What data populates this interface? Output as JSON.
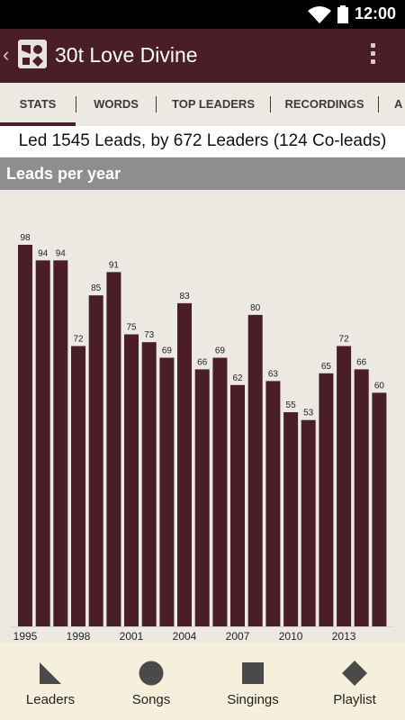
{
  "status": {
    "time": "12:00"
  },
  "appbar": {
    "title": "30t Love Divine",
    "back_glyph": "‹"
  },
  "tabs": [
    {
      "label": "STATS",
      "active": true
    },
    {
      "label": "WORDS"
    },
    {
      "label": "TOP LEADERS"
    },
    {
      "label": "RECORDINGS"
    },
    {
      "label": "A"
    }
  ],
  "summary": {
    "text": "Led 1545 Leads, by 672 Leaders (124 Co-leads)"
  },
  "section": {
    "title": "Leads per year"
  },
  "chart_data": {
    "type": "bar",
    "title": "Leads per year",
    "categories": [
      "1995",
      "1996",
      "1997",
      "1998",
      "1999",
      "2000",
      "2001",
      "2002",
      "2003",
      "2004",
      "2005",
      "2006",
      "2007",
      "2008",
      "2009",
      "2010",
      "2011",
      "2012",
      "2013",
      "2014",
      "2015"
    ],
    "values": [
      98,
      94,
      94,
      72,
      85,
      91,
      75,
      73,
      69,
      83,
      66,
      69,
      62,
      80,
      63,
      55,
      53,
      65,
      72,
      66,
      60
    ],
    "xtick_labels": [
      "1995",
      "1998",
      "2001",
      "2004",
      "2007",
      "2010",
      "2013"
    ],
    "bar_color": "#4a1e27",
    "ylim": [
      0,
      98
    ]
  },
  "bottomnav": [
    {
      "label": "Leaders",
      "icon": "triangle-icon"
    },
    {
      "label": "Songs",
      "icon": "circle-icon"
    },
    {
      "label": "Singings",
      "icon": "square-icon"
    },
    {
      "label": "Playlist",
      "icon": "diamond-icon"
    }
  ],
  "colors": {
    "primary": "#4a1e27",
    "background": "#ece9e2",
    "section_bar": "#8e8e8e",
    "bottom_nav": "#f6efdb"
  }
}
